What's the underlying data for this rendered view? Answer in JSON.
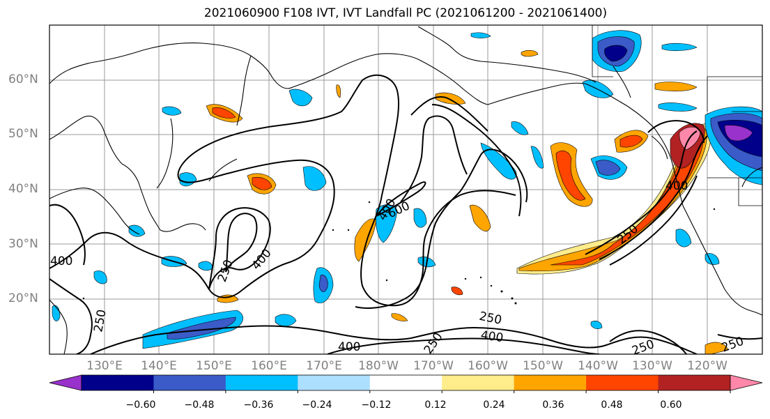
{
  "title": "2021060900 F108 IVT, IVT Landfall PC (2021061200 - 2021061400)",
  "lat_labels": [
    "60°N",
    "50°N",
    "40°N",
    "30°N",
    "20°N"
  ],
  "lon_labels": [
    "130°E",
    "140°E",
    "150°E",
    "160°E",
    "170°E",
    "180°W",
    "170°W",
    "160°W",
    "150°W",
    "140°W",
    "130°W",
    "120°W"
  ],
  "contour_labels": [
    "400",
    "250",
    "400",
    "400",
    "600",
    "250",
    "400",
    "250",
    "250",
    "400",
    "250",
    "400",
    "250",
    "250"
  ],
  "colorbar": {
    "colors": [
      "#9932CC",
      "#00008B",
      "#3A5BC8",
      "#00BFFF",
      "#ADDFFF",
      "#FFFFFF",
      "#FFEC8B",
      "#FFA500",
      "#FF4500",
      "#B22222",
      "#FF88AA"
    ],
    "tick_labels": [
      "−0.60",
      "−0.48",
      "−0.36",
      "−0.24",
      "−0.12",
      "0.12",
      "0.24",
      "0.36",
      "0.48",
      "0.60"
    ]
  }
}
